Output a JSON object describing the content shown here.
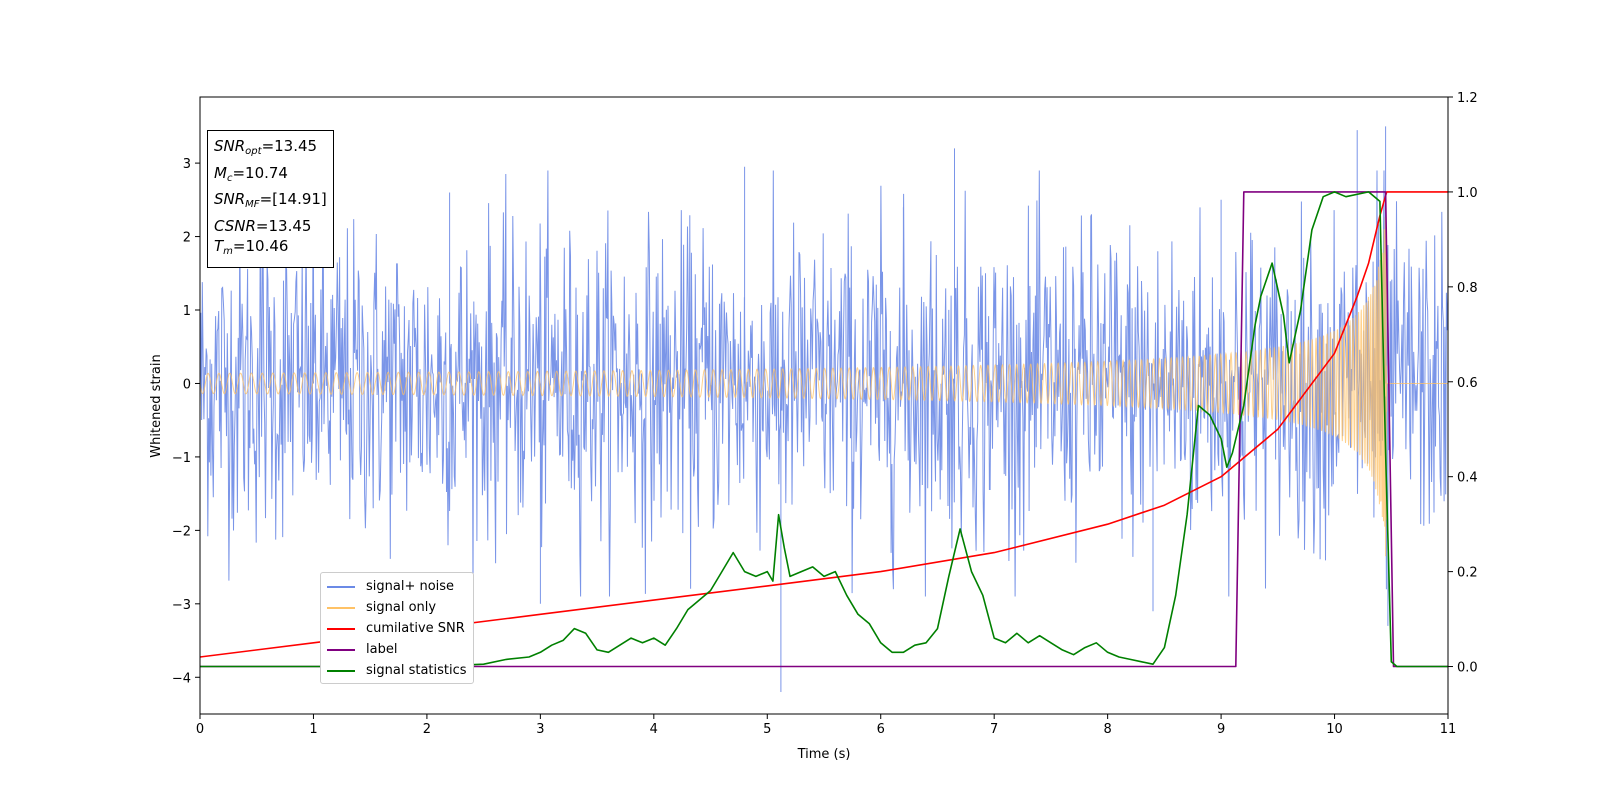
{
  "chart_data": {
    "type": "line",
    "xlabel": "Time (s)",
    "ylabel": "Whitened strain",
    "xlim": [
      0,
      11
    ],
    "ylim_left": [
      -4.5,
      3.9
    ],
    "ylim_right": [
      -0.1,
      1.2
    ],
    "x_ticks": [
      "0",
      "1",
      "2",
      "3",
      "4",
      "5",
      "6",
      "7",
      "8",
      "9",
      "10",
      "11"
    ],
    "y_ticks_left": [
      "3",
      "2",
      "1",
      "0",
      "−1",
      "−2",
      "−3",
      "−4"
    ],
    "y_ticks_right": [
      "1.2",
      "1.0",
      "0.8",
      "0.6",
      "0.4",
      "0.2",
      "0.0"
    ],
    "annotation": {
      "snr_opt": "=13.45",
      "mc": "=10.74",
      "snr_mf": "=[14.91]",
      "csnr": "=13.45",
      "tm": "=10.46"
    },
    "legend_placement": "lower-left",
    "series": [
      {
        "name": "signal+ noise",
        "color": "#6b8ae6",
        "axis": "left",
        "kind": "noise",
        "std": 1.0,
        "max": 3.5,
        "min": -4.2
      },
      {
        "name": "signal only",
        "color": "#ffc266",
        "axis": "left",
        "kind": "chirp",
        "merger_time": 10.46,
        "peak_amplitude": 2.6
      },
      {
        "name": "cumilative SNR",
        "color": "#ff0000",
        "axis": "right",
        "x": [
          0,
          1,
          2,
          3,
          4,
          5,
          6,
          7,
          8,
          8.5,
          9,
          9.5,
          10,
          10.2,
          10.3,
          10.4,
          10.46,
          11
        ],
        "y": [
          0.02,
          0.05,
          0.08,
          0.11,
          0.14,
          0.17,
          0.2,
          0.24,
          0.3,
          0.34,
          0.4,
          0.5,
          0.66,
          0.78,
          0.85,
          0.95,
          1.0,
          1.0
        ]
      },
      {
        "name": "label",
        "color": "#800080",
        "axis": "right",
        "x": [
          0,
          9.13,
          9.2,
          10.45,
          10.52,
          11
        ],
        "y": [
          0,
          0,
          1,
          1,
          0,
          0
        ]
      },
      {
        "name": "signal statistics",
        "color": "#008000",
        "axis": "right",
        "x": [
          0,
          2,
          2.5,
          2.7,
          2.9,
          3.0,
          3.1,
          3.2,
          3.3,
          3.4,
          3.5,
          3.6,
          3.8,
          3.9,
          4.0,
          4.1,
          4.2,
          4.3,
          4.4,
          4.5,
          4.6,
          4.7,
          4.75,
          4.8,
          4.9,
          5.0,
          5.05,
          5.1,
          5.15,
          5.2,
          5.3,
          5.4,
          5.5,
          5.6,
          5.7,
          5.8,
          5.9,
          6.0,
          6.1,
          6.2,
          6.3,
          6.4,
          6.5,
          6.6,
          6.7,
          6.8,
          6.9,
          7.0,
          7.1,
          7.2,
          7.3,
          7.4,
          7.5,
          7.6,
          7.7,
          7.8,
          7.9,
          8.0,
          8.1,
          8.2,
          8.3,
          8.4,
          8.5,
          8.6,
          8.7,
          8.8,
          8.9,
          9.0,
          9.05,
          9.1,
          9.2,
          9.3,
          9.35,
          9.45,
          9.55,
          9.6,
          9.7,
          9.8,
          9.9,
          10.0,
          10.1,
          10.3,
          10.4,
          10.45,
          10.5,
          10.55,
          11
        ],
        "y": [
          0,
          0,
          0.005,
          0.015,
          0.02,
          0.03,
          0.045,
          0.055,
          0.08,
          0.07,
          0.035,
          0.03,
          0.06,
          0.05,
          0.06,
          0.045,
          0.08,
          0.12,
          0.14,
          0.16,
          0.2,
          0.24,
          0.22,
          0.2,
          0.19,
          0.2,
          0.18,
          0.32,
          0.25,
          0.19,
          0.2,
          0.21,
          0.19,
          0.2,
          0.15,
          0.11,
          0.09,
          0.05,
          0.03,
          0.03,
          0.045,
          0.05,
          0.08,
          0.19,
          0.29,
          0.2,
          0.15,
          0.06,
          0.05,
          0.07,
          0.05,
          0.065,
          0.05,
          0.035,
          0.025,
          0.04,
          0.05,
          0.03,
          0.02,
          0.015,
          0.01,
          0.005,
          0.04,
          0.15,
          0.32,
          0.55,
          0.53,
          0.48,
          0.42,
          0.45,
          0.55,
          0.72,
          0.78,
          0.85,
          0.74,
          0.64,
          0.75,
          0.92,
          0.99,
          1.0,
          0.99,
          1.0,
          0.98,
          0.45,
          0.01,
          0.0,
          0.0
        ]
      }
    ]
  }
}
